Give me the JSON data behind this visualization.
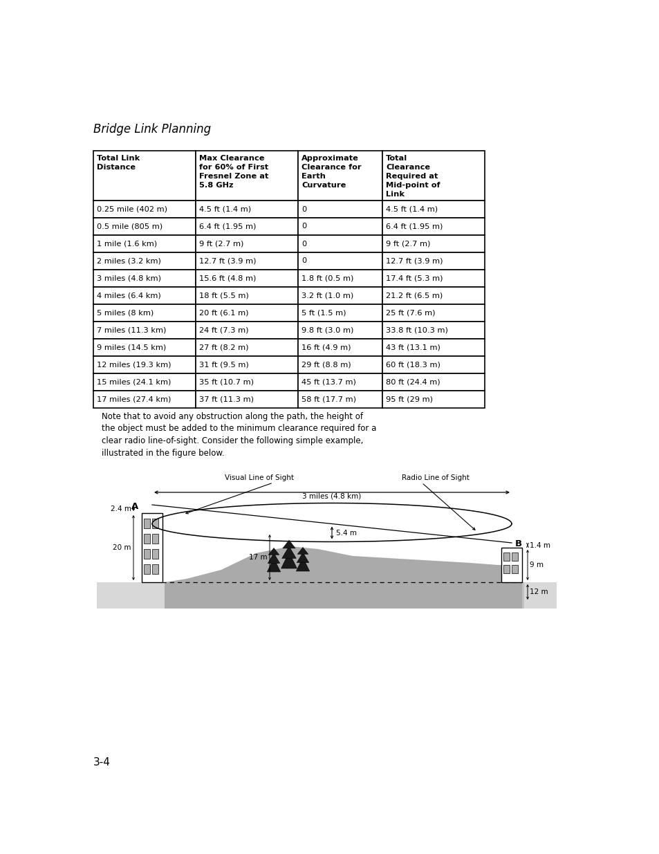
{
  "title": "Bridge Link Planning",
  "page_number": "3-4",
  "table_headers": [
    "Total Link\nDistance",
    "Max Clearance\nfor 60% of First\nFresnel Zone at\n5.8 GHz",
    "Approximate\nClearance for\nEarth\nCurvature",
    "Total\nClearance\nRequired at\nMid-point of\nLink"
  ],
  "table_data": [
    [
      "0.25 mile (402 m)",
      "4.5 ft (1.4 m)",
      "0",
      "4.5 ft (1.4 m)"
    ],
    [
      "0.5 mile (805 m)",
      "6.4 ft (1.95 m)",
      "0",
      "6.4 ft (1.95 m)"
    ],
    [
      "1 mile (1.6 km)",
      "9 ft (2.7 m)",
      "0",
      "9 ft (2.7 m)"
    ],
    [
      "2 miles (3.2 km)",
      "12.7 ft (3.9 m)",
      "0",
      "12.7 ft (3.9 m)"
    ],
    [
      "3 miles (4.8 km)",
      "15.6 ft (4.8 m)",
      "1.8 ft (0.5 m)",
      "17.4 ft (5.3 m)"
    ],
    [
      "4 miles (6.4 km)",
      "18 ft (5.5 m)",
      "3.2 ft (1.0 m)",
      "21.2 ft (6.5 m)"
    ],
    [
      "5 miles (8 km)",
      "20 ft (6.1 m)",
      "5 ft (1.5 m)",
      "25 ft (7.6 m)"
    ],
    [
      "7 miles (11.3 km)",
      "24 ft (7.3 m)",
      "9.8 ft (3.0 m)",
      "33.8 ft (10.3 m)"
    ],
    [
      "9 miles (14.5 km)",
      "27 ft (8.2 m)",
      "16 ft (4.9 m)",
      "43 ft (13.1 m)"
    ],
    [
      "12 miles (19.3 km)",
      "31 ft (9.5 m)",
      "29 ft (8.8 m)",
      "60 ft (18.3 m)"
    ],
    [
      "15 miles (24.1 km)",
      "35 ft (10.7 m)",
      "45 ft (13.7 m)",
      "80 ft (24.4 m)"
    ],
    [
      "17 miles (27.4 km)",
      "37 ft (11.3 m)",
      "58 ft (17.7 m)",
      "95 ft (29 m)"
    ]
  ],
  "note_text": "Note that to avoid any obstruction along the path, the height of\nthe object must be added to the minimum clearance required for a\nclear radio line-of-sight. Consider the following simple example,\nillustrated in the figure below.",
  "diagram_labels": {
    "visual_los": "Visual Line of Sight",
    "radio_los": "Radio Line of Sight",
    "distance": "3 miles (4.8 km)",
    "A": "A",
    "B": "B",
    "height_A": "2.4 m",
    "height_B": "1.4 m",
    "building_A_height": "20 m",
    "building_B_height": "9 m",
    "tree_height": "17 m",
    "clearance": "5.4 m",
    "ground_B": "12 m"
  }
}
